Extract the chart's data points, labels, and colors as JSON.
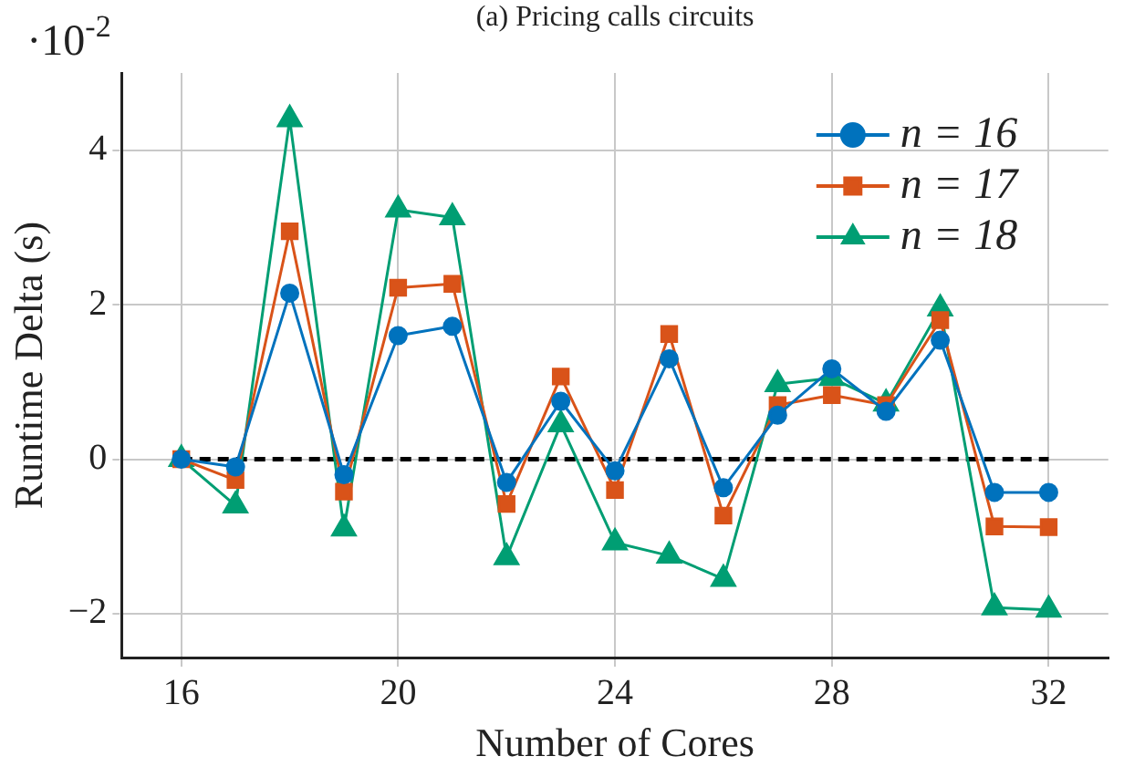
{
  "chart_data": {
    "type": "line",
    "title": "(a) Pricing calls circuits",
    "xlabel": "Number of Cores",
    "ylabel": "Runtime Delta (s)",
    "annotations": [
      "·10$^{-2}$"
    ],
    "x": [
      16,
      17,
      18,
      19,
      20,
      21,
      22,
      23,
      24,
      25,
      26,
      27,
      28,
      29,
      30,
      31,
      32
    ],
    "series": [
      {
        "name": "n = 16",
        "color": "#0072bd",
        "marker": "circle",
        "values": [
          0,
          -0.1,
          2.15,
          -0.2,
          1.6,
          1.72,
          -0.3,
          0.75,
          -0.15,
          1.3,
          -0.37,
          0.57,
          1.17,
          0.62,
          1.54,
          -0.43,
          -0.43
        ]
      },
      {
        "name": "n = 17",
        "color": "#d95319",
        "marker": "square",
        "values": [
          0,
          -0.27,
          2.95,
          -0.42,
          2.22,
          2.27,
          -0.58,
          1.07,
          -0.4,
          1.62,
          -0.73,
          0.7,
          0.83,
          0.7,
          1.8,
          -0.87,
          -0.88
        ]
      },
      {
        "name": "n = 18",
        "color": "#009e73",
        "marker": "triangle",
        "values": [
          0,
          -0.6,
          4.4,
          -0.9,
          3.23,
          3.13,
          -1.27,
          0.45,
          -1.08,
          -1.25,
          -1.55,
          0.97,
          1.05,
          0.72,
          1.95,
          -1.92,
          -1.95
        ]
      }
    ],
    "xlim": [
      14.9,
      33.1
    ],
    "xticks": [
      16,
      20,
      24,
      28,
      32
    ],
    "ylim": [
      -2.57,
      5
    ],
    "yticks": [
      -2,
      0,
      2,
      4
    ],
    "ref_lines": [
      {
        "axis": "y",
        "value": 0,
        "color": "#000000",
        "line_style": "dashed"
      }
    ],
    "grid": true,
    "legend": "top right",
    "line_style": "solid"
  }
}
